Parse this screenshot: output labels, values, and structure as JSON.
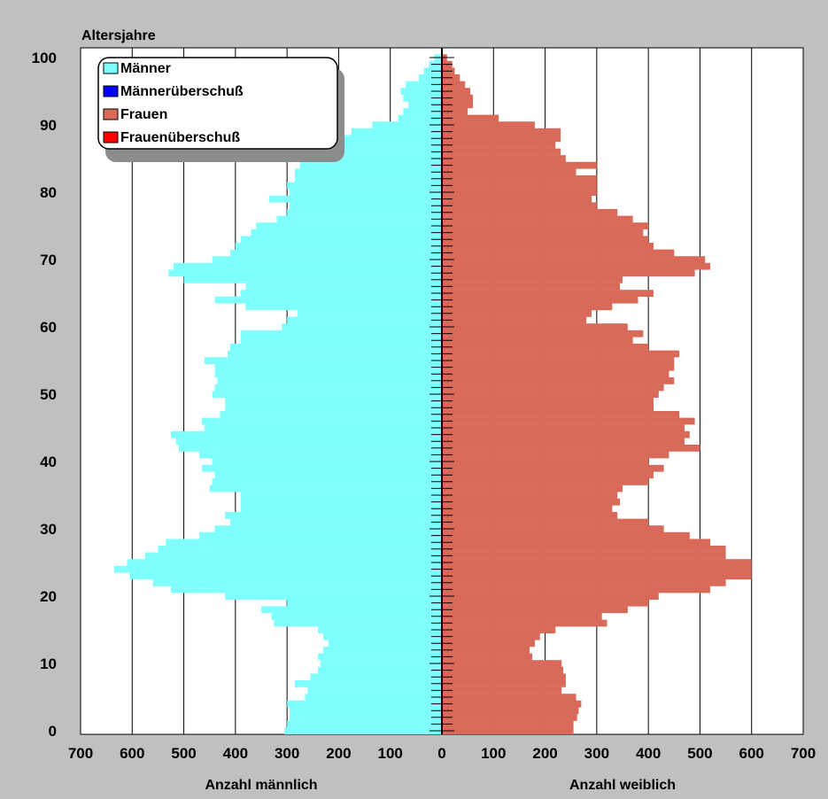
{
  "chart_data": {
    "type": "population-pyramid",
    "ylabel": "Altersjahre",
    "xlabel_left": "Anzahl männlich",
    "xlabel_right": "Anzahl weiblich",
    "x_ticks": [
      "700",
      "600",
      "500",
      "400",
      "300",
      "200",
      "100",
      "0",
      "100",
      "200",
      "300",
      "400",
      "500",
      "600",
      "700"
    ],
    "y_ticks": [
      "0",
      "10",
      "20",
      "30",
      "40",
      "50",
      "60",
      "70",
      "80",
      "90",
      "100"
    ],
    "xlim": [
      0,
      700
    ],
    "ylim": [
      0,
      100
    ],
    "grid": true,
    "legend_position": "top-left",
    "legend": [
      {
        "label": "Männer",
        "color": "#80ffff"
      },
      {
        "label": "Männerüberschuß",
        "color": "#0000ff"
      },
      {
        "label": "Frauen",
        "color": "#d96a5a"
      },
      {
        "label": "Frauenüberschuß",
        "color": "#ff0000"
      }
    ],
    "colors": {
      "men": "#80ffff",
      "men_surplus": "#0000ff",
      "women": "#d96a5a",
      "women_surplus": "#ff0000",
      "plot_background": "#ffffff",
      "frame_background": "#c0c0c0"
    },
    "series": [
      {
        "name": "Männer",
        "side": "left",
        "values": [
          305,
          300,
          295,
          295,
          300,
          265,
          260,
          285,
          255,
          240,
          235,
          240,
          230,
          220,
          230,
          240,
          325,
          330,
          350,
          300,
          420,
          525,
          560,
          605,
          635,
          610,
          575,
          550,
          535,
          470,
          440,
          410,
          420,
          390,
          390,
          390,
          450,
          445,
          440,
          465,
          445,
          470,
          510,
          515,
          525,
          460,
          465,
          430,
          420,
          420,
          445,
          440,
          435,
          440,
          440,
          460,
          415,
          410,
          390,
          390,
          310,
          300,
          280,
          380,
          440,
          390,
          380,
          500,
          530,
          520,
          445,
          410,
          400,
          390,
          370,
          360,
          320,
          300,
          295,
          335,
          295,
          300,
          285,
          285,
          275,
          230,
          220,
          225,
          230,
          175,
          135,
          85,
          75,
          65,
          75,
          80,
          70,
          45,
          35,
          25,
          15
        ]
      },
      {
        "name": "Frauen",
        "side": "right",
        "values": [
          255,
          255,
          262,
          265,
          270,
          260,
          232,
          240,
          240,
          235,
          232,
          175,
          170,
          180,
          190,
          220,
          320,
          310,
          360,
          400,
          420,
          520,
          550,
          600,
          600,
          600,
          550,
          550,
          520,
          480,
          430,
          400,
          340,
          330,
          345,
          340,
          350,
          400,
          410,
          430,
          400,
          440,
          500,
          470,
          480,
          470,
          490,
          460,
          410,
          410,
          420,
          430,
          450,
          440,
          450,
          450,
          460,
          400,
          370,
          390,
          360,
          280,
          290,
          330,
          380,
          410,
          345,
          350,
          490,
          520,
          510,
          450,
          410,
          400,
          390,
          400,
          370,
          340,
          300,
          290,
          300,
          300,
          300,
          260,
          300,
          240,
          230,
          220,
          230,
          230,
          180,
          110,
          50,
          60,
          60,
          55,
          45,
          35,
          25,
          20,
          10
        ]
      },
      {
        "name": "Männerüberschuß",
        "side": "left",
        "values": [
          0,
          0,
          0,
          0,
          0,
          0,
          0,
          0,
          0,
          0,
          0,
          0,
          0,
          0,
          0,
          0,
          0,
          0,
          0,
          0,
          0,
          0,
          0,
          0,
          0,
          0,
          0,
          0,
          0,
          0,
          0,
          0,
          0,
          0,
          0,
          0,
          0,
          0,
          0,
          0,
          0,
          0,
          0,
          0,
          0,
          0,
          0,
          0,
          0,
          0,
          0,
          0,
          0,
          0,
          0,
          0,
          0,
          0,
          0,
          0,
          0,
          0,
          0,
          0,
          0,
          0,
          0,
          0,
          0,
          0,
          0,
          0,
          0,
          0,
          0,
          0,
          0,
          0,
          0,
          0,
          0,
          0,
          0,
          0,
          0,
          0,
          0,
          0,
          0,
          0,
          0,
          0,
          0,
          0,
          0,
          0,
          0,
          0,
          0,
          0,
          0
        ]
      },
      {
        "name": "Frauenüberschuß",
        "side": "right",
        "values": [
          0,
          0,
          0,
          0,
          0,
          0,
          0,
          0,
          0,
          0,
          0,
          0,
          0,
          0,
          0,
          0,
          0,
          0,
          0,
          0,
          0,
          0,
          0,
          0,
          0,
          0,
          0,
          0,
          0,
          0,
          0,
          0,
          0,
          0,
          0,
          0,
          0,
          0,
          0,
          0,
          0,
          0,
          0,
          0,
          0,
          0,
          0,
          0,
          0,
          0,
          0,
          0,
          0,
          0,
          0,
          0,
          0,
          0,
          0,
          0,
          0,
          0,
          0,
          0,
          0,
          0,
          0,
          0,
          0,
          0,
          0,
          0,
          0,
          0,
          0,
          0,
          0,
          0,
          0,
          0,
          0,
          0,
          0,
          0,
          0,
          0,
          0,
          0,
          0,
          0,
          0,
          0,
          0,
          0,
          0,
          0,
          0,
          0,
          0,
          0,
          0
        ]
      }
    ]
  }
}
